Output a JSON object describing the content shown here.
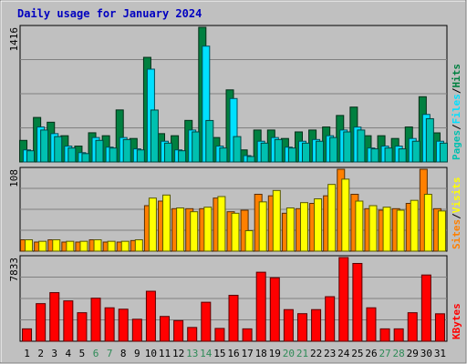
{
  "title": "Daily usage for January 2024",
  "colors": {
    "background": "#C0C0C0",
    "title": "#0000C0",
    "hits": "#008040",
    "files": "#00E0FF",
    "pages": "#00C0B0",
    "visits": "#FF8000",
    "sites": "#FFFF00",
    "kbytes": "#FF0000",
    "weekend_day": "#2E8B57",
    "weekday": "#000000"
  },
  "chart_data": [
    {
      "type": "bar",
      "name": "hits-files-pages",
      "ylabel_parts": [
        "Pages",
        "/",
        "Files",
        "/",
        "Hits"
      ],
      "ymax_label": "1416",
      "ylim": [
        0,
        1416
      ],
      "categories": [
        "1",
        "2",
        "3",
        "4",
        "5",
        "6",
        "7",
        "8",
        "9",
        "10",
        "11",
        "12",
        "13",
        "14",
        "15",
        "16",
        "17",
        "18",
        "19",
        "20",
        "21",
        "22",
        "23",
        "24",
        "25",
        "26",
        "27",
        "28",
        "29",
        "30",
        "31"
      ],
      "series": [
        {
          "name": "Hits",
          "values": [
            227,
            468,
            418,
            276,
            167,
            307,
            276,
            547,
            247,
            1100,
            298,
            276,
            437,
            1416,
            257,
            758,
            127,
            336,
            336,
            247,
            316,
            336,
            368,
            489,
            577,
            276,
            276,
            247,
            368,
            686,
            306
          ]
        },
        {
          "name": "Files",
          "values": [
            127,
            368,
            298,
            167,
            98,
            257,
            156,
            257,
            138,
            976,
            218,
            127,
            336,
            1218,
            167,
            667,
            67,
            218,
            257,
            156,
            218,
            236,
            276,
            336,
            367,
            147,
            167,
            167,
            247,
            500,
            218
          ]
        },
        {
          "name": "Pages",
          "values": [
            118,
            336,
            267,
            147,
            88,
            227,
            147,
            236,
            127,
            546,
            198,
            118,
            316,
            436,
            147,
            267,
            58,
            198,
            236,
            147,
            198,
            218,
            257,
            316,
            336,
            138,
            147,
            138,
            218,
            455,
            198
          ]
        }
      ]
    },
    {
      "type": "bar",
      "name": "visits-sites",
      "ylabel_parts": [
        "Sites",
        "/",
        "Visits"
      ],
      "ymax_label": "108",
      "ylim": [
        0,
        108
      ],
      "categories": [
        "1",
        "2",
        "3",
        "4",
        "5",
        "6",
        "7",
        "8",
        "9",
        "10",
        "11",
        "12",
        "13",
        "14",
        "15",
        "16",
        "17",
        "18",
        "19",
        "20",
        "21",
        "22",
        "23",
        "24",
        "25",
        "26",
        "27",
        "28",
        "29",
        "30",
        "31"
      ],
      "series": [
        {
          "name": "Visits",
          "values": [
            15,
            12,
            15,
            12,
            12,
            15,
            12,
            12,
            14,
            60,
            66,
            56,
            56,
            56,
            70,
            52,
            54,
            75,
            73,
            50,
            56,
            63,
            73,
            108,
            75,
            56,
            54,
            56,
            63,
            108,
            56
          ]
        },
        {
          "name": "Sites",
          "values": [
            15,
            13,
            15,
            13,
            13,
            15,
            13,
            13,
            15,
            70,
            74,
            57,
            52,
            58,
            72,
            50,
            27,
            65,
            80,
            57,
            64,
            69,
            88,
            95,
            66,
            60,
            58,
            54,
            67,
            75,
            53
          ]
        }
      ]
    },
    {
      "type": "bar",
      "name": "kbytes",
      "ylabel_parts": [
        "KBytes"
      ],
      "ymax_label": "7833",
      "ylim": [
        0,
        7833
      ],
      "categories": [
        "1",
        "2",
        "3",
        "4",
        "5",
        "6",
        "7",
        "8",
        "9",
        "10",
        "11",
        "12",
        "13",
        "14",
        "15",
        "16",
        "17",
        "18",
        "19",
        "20",
        "21",
        "22",
        "23",
        "24",
        "25",
        "26",
        "27",
        "28",
        "29",
        "30",
        "31"
      ],
      "series": [
        {
          "name": "KBytes",
          "values": [
            1160,
            3520,
            4550,
            3780,
            2670,
            4030,
            3130,
            3000,
            2060,
            4680,
            2320,
            1930,
            1290,
            3650,
            1200,
            4300,
            1160,
            6460,
            5940,
            2960,
            2580,
            2960,
            4170,
            7833,
            7280,
            3130,
            1160,
            1160,
            2670,
            6200,
            2570
          ]
        }
      ]
    }
  ],
  "x_axis": {
    "days": [
      "1",
      "2",
      "3",
      "4",
      "5",
      "6",
      "7",
      "8",
      "9",
      "10",
      "11",
      "12",
      "13",
      "14",
      "15",
      "16",
      "17",
      "18",
      "19",
      "20",
      "21",
      "22",
      "23",
      "24",
      "25",
      "26",
      "27",
      "28",
      "29",
      "30",
      "31"
    ],
    "weekend": [
      6,
      7,
      13,
      14,
      20,
      21,
      27,
      28
    ]
  }
}
